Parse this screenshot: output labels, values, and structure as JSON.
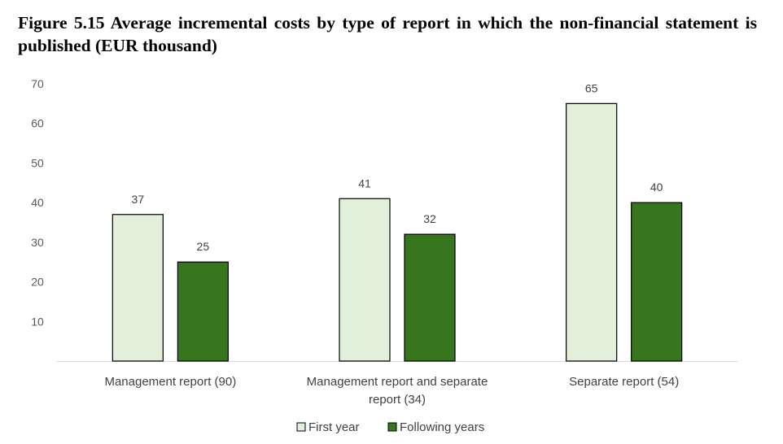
{
  "chart_data": {
    "type": "bar",
    "title": "Figure 5.15 Average incremental costs by type of report in which the non-financial statement is published (EUR thousand)",
    "categories": [
      [
        "Management report (90)"
      ],
      [
        "Management report and separate",
        "report (34)"
      ],
      [
        "Separate report (54)"
      ]
    ],
    "series": [
      {
        "name": "First year",
        "values": [
          37,
          41,
          65
        ],
        "color": "#e2efda"
      },
      {
        "name": "Following years",
        "values": [
          25,
          32,
          40
        ],
        "color": "#38761d"
      }
    ],
    "yticks": [
      10,
      20,
      30,
      40,
      50,
      60,
      70
    ],
    "ylim": [
      0,
      70
    ],
    "xlabel": "",
    "ylabel": "",
    "legend_position": "bottom-center",
    "grid": false
  }
}
